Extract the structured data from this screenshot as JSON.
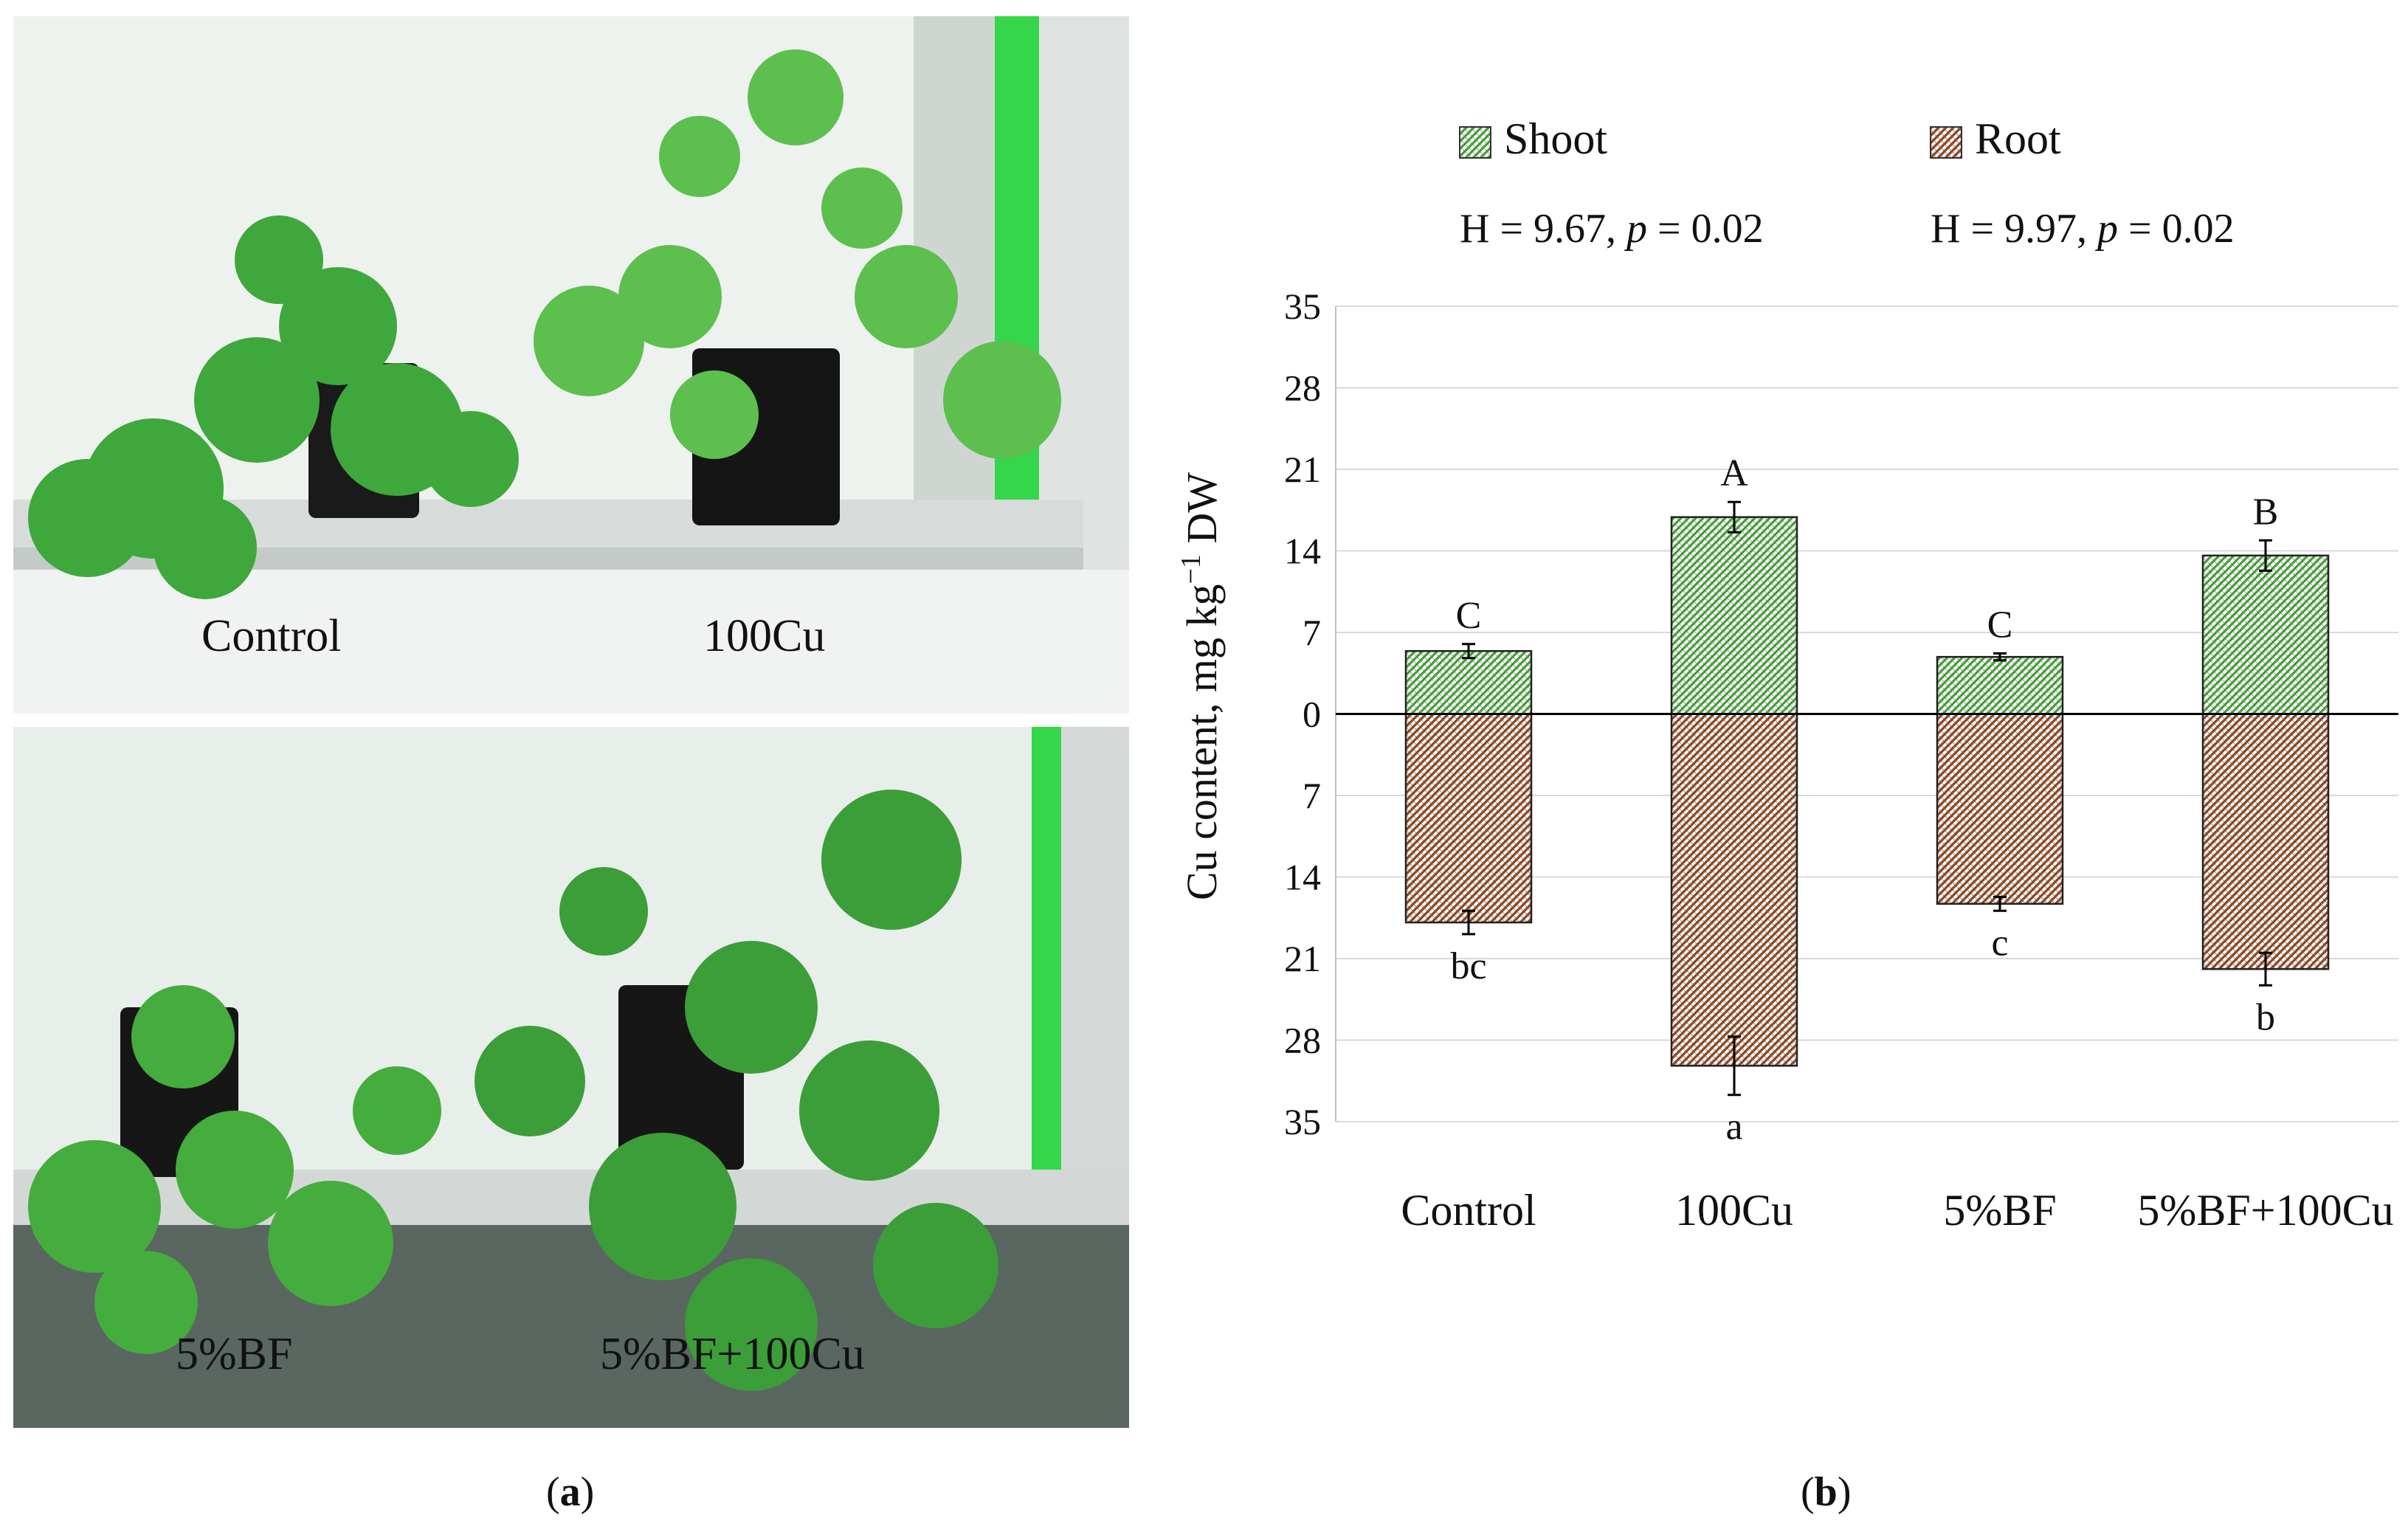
{
  "panel_a": {
    "photo_top": {
      "label_left": "Control",
      "label_right": "100Cu"
    },
    "photo_bottom": {
      "label_left": "5%BF",
      "label_right": "5%BF+100Cu"
    },
    "caption_open": "(",
    "caption_letter": "a",
    "caption_close": ")"
  },
  "panel_b": {
    "caption_open": "(",
    "caption_letter": "b",
    "caption_close": ")"
  },
  "colors": {
    "shoot_fill": "#4a9a3e",
    "root_fill": "#8c4a2a",
    "grid": "#d9d9d9",
    "axis": "#000000"
  },
  "chart_data": {
    "type": "bar",
    "orientation": "diverging",
    "categories": [
      "Control",
      "100Cu",
      "5%BF",
      "5%BF+100Cu"
    ],
    "series": [
      {
        "name": "Shoot",
        "direction": "up",
        "values": [
          5.4,
          16.9,
          4.9,
          13.6
        ],
        "errors": [
          0.6,
          1.3,
          0.3,
          1.3
        ],
        "letters": [
          "C",
          "A",
          "C",
          "B"
        ],
        "stat_prefix": "H = 9.67, ",
        "stat_p": "p",
        "stat_suffix": " = 0.02",
        "pattern": "diagonal hatch, green"
      },
      {
        "name": "Root",
        "direction": "down",
        "values": [
          17.9,
          30.2,
          16.3,
          21.9
        ],
        "errors": [
          1.0,
          2.5,
          0.6,
          1.4
        ],
        "letters": [
          "bc",
          "a",
          "c",
          "b"
        ],
        "stat_prefix": "H = 9.97,  ",
        "stat_p": "p",
        "stat_suffix": "  = 0.02",
        "pattern": "diagonal hatch, brown"
      }
    ],
    "ylabel_main": "Cu content,  mg kg",
    "ylabel_sup": "−1",
    "ylabel_end": " DW",
    "yticks_up": [
      "0",
      "7",
      "14",
      "21",
      "28",
      "35"
    ],
    "yticks_down": [
      "7",
      "14",
      "21",
      "28",
      "35"
    ],
    "ylim": [
      -35,
      35
    ],
    "grid": true,
    "legend_position": "top"
  }
}
